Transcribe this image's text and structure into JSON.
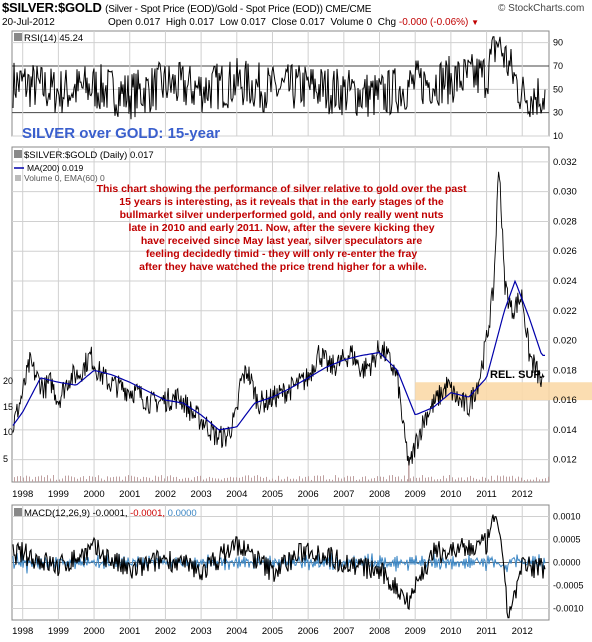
{
  "header": {
    "symbol": "$SILVER:$GOLD",
    "description": "(Silver - Spot Price (EOD)/Gold - Spot Price (EOD)) CME/CME",
    "date": "20-Jul-2012",
    "open_label": "Open",
    "open": "0.017",
    "high_label": "High",
    "high": "0.017",
    "low_label": "Low",
    "low": "0.017",
    "close_label": "Close",
    "close": "0.017",
    "volume_label": "Volume",
    "volume": "0",
    "chg_label": "Chg",
    "chg": "-0.000 (-0.06%)",
    "brand": "© StockCharts.com"
  },
  "colors": {
    "price": "#000000",
    "price_highlight": "#cc0033",
    "ma": "#0000aa",
    "annotation": "#c00000",
    "title": "#3a5fcd",
    "support_band": "#fbd9a8",
    "macd_signal": "#cc0000",
    "macd_hist": "#3b86c4",
    "grid": "#d0d0d0"
  },
  "chart_data": [
    {
      "type": "line",
      "panel": "rsi",
      "legend": "RSI(14) 45.24",
      "ylim": [
        10,
        100
      ],
      "yticks": [
        10,
        30,
        50,
        70,
        90
      ],
      "reference_lines": [
        30,
        70
      ],
      "series": [
        {
          "name": "RSI(14)",
          "x": [
            1998.0,
            1999.0,
            2000.0,
            2001.0,
            2002.0,
            2003.0,
            2004.0,
            2005.0,
            2006.0,
            2007.0,
            2008.0,
            2009.0,
            2010.0,
            2011.0,
            2011.3,
            2012.0,
            2012.55
          ],
          "values": [
            55,
            48,
            52,
            45,
            54,
            50,
            56,
            50,
            52,
            48,
            44,
            55,
            58,
            62,
            92,
            45,
            45.24
          ]
        }
      ]
    },
    {
      "type": "line",
      "panel": "price",
      "legend": [
        "$SILVER:$GOLD (Daily) 0.017",
        "MA(200) 0.019",
        "Volume 0, EMA(60) 0"
      ],
      "title": "SILVER over GOLD: 15-year",
      "annotation": "This chart showing the performance of silver relative to gold over the past 15 years is interesting, as it reveals that in the early stages of the bullmarket silver underperformed gold, and only really went nuts late in 2010 and early 2011. Now, after the severe kicking they have received since May last year, silver speculators are feeling decidedly timid - they will only re-enter the fray after they have watched the price trend higher for a while.",
      "support_label": "REL. SUP.",
      "support_band": [
        0.016,
        0.0172
      ],
      "yticks": [
        0.012,
        0.014,
        0.016,
        0.018,
        0.02,
        0.022,
        0.024,
        0.026,
        0.028,
        0.03,
        0.032
      ],
      "ytick_labels": [
        "0.012",
        "0.014",
        "0.016",
        "0.018",
        "0.020",
        "0.022",
        "0.024",
        "0.026",
        "0.028",
        "0.030",
        "0.032"
      ],
      "ylim": [
        0.0105,
        0.033
      ],
      "volume_ticks": [
        "5",
        "10",
        "15",
        "20"
      ],
      "xlim": [
        1997.7,
        2012.75
      ],
      "xticks": [
        1998,
        1999,
        2000,
        2001,
        2002,
        2003,
        2004,
        2005,
        2006,
        2007,
        2008,
        2009,
        2010,
        2011,
        2012
      ],
      "xtick_labels": [
        "1998",
        "1999",
        "2000",
        "2001",
        "2002",
        "2003",
        "2004",
        "2005",
        "2006",
        "2007",
        "2008",
        "2009",
        "2010",
        "2011",
        "2012"
      ],
      "series": [
        {
          "name": "$SILVER:$GOLD",
          "x": [
            1997.7,
            1998.0,
            1998.2,
            1998.4,
            1998.6,
            1998.8,
            1999.0,
            1999.3,
            1999.6,
            1999.9,
            2000.1,
            2000.4,
            2000.8,
            2001.2,
            2001.6,
            2002.0,
            2002.4,
            2002.8,
            2003.1,
            2003.4,
            2003.7,
            2004.0,
            2004.1,
            2004.3,
            2004.6,
            2004.9,
            2005.3,
            2005.7,
            2006.0,
            2006.3,
            2006.6,
            2006.9,
            2007.2,
            2007.5,
            2007.8,
            2008.0,
            2008.2,
            2008.5,
            2008.7,
            2008.85,
            2009.0,
            2009.3,
            2009.6,
            2009.9,
            2010.2,
            2010.5,
            2010.8,
            2011.0,
            2011.2,
            2011.35,
            2011.5,
            2011.7,
            2012.0,
            2012.2,
            2012.4,
            2012.55
          ],
          "values": [
            0.014,
            0.0165,
            0.0185,
            0.0175,
            0.0168,
            0.0172,
            0.016,
            0.0175,
            0.0178,
            0.019,
            0.018,
            0.0172,
            0.0168,
            0.0165,
            0.0158,
            0.016,
            0.0162,
            0.015,
            0.0145,
            0.0136,
            0.0135,
            0.015,
            0.0172,
            0.018,
            0.0158,
            0.016,
            0.0165,
            0.017,
            0.0175,
            0.0192,
            0.0182,
            0.0185,
            0.0192,
            0.018,
            0.0185,
            0.0195,
            0.019,
            0.0175,
            0.0135,
            0.0115,
            0.013,
            0.015,
            0.016,
            0.017,
            0.016,
            0.0155,
            0.0175,
            0.02,
            0.0235,
            0.0322,
            0.024,
            0.022,
            0.023,
            0.019,
            0.018,
            0.017
          ]
        },
        {
          "name": "MA(200)",
          "x": [
            1997.7,
            1998.0,
            1998.5,
            1999.0,
            1999.5,
            2000.0,
            2000.5,
            2001.0,
            2001.5,
            2002.0,
            2002.5,
            2003.0,
            2003.5,
            2004.0,
            2004.5,
            2005.0,
            2005.5,
            2006.0,
            2006.5,
            2007.0,
            2007.5,
            2008.0,
            2008.5,
            2009.0,
            2009.5,
            2010.0,
            2010.5,
            2011.0,
            2011.5,
            2011.8,
            2012.2,
            2012.55
          ],
          "values": [
            0.0142,
            0.0152,
            0.0175,
            0.0172,
            0.017,
            0.018,
            0.0177,
            0.0172,
            0.0166,
            0.016,
            0.0158,
            0.015,
            0.014,
            0.0142,
            0.0158,
            0.0162,
            0.0168,
            0.0175,
            0.0182,
            0.0187,
            0.019,
            0.0192,
            0.018,
            0.015,
            0.0155,
            0.0165,
            0.0162,
            0.0175,
            0.022,
            0.024,
            0.0215,
            0.019
          ]
        }
      ]
    },
    {
      "type": "line",
      "panel": "macd",
      "legend": [
        "MACD(12,26,9) -0.0001,",
        "-0.0001,",
        "0.0000"
      ],
      "ylim": [
        -0.00125,
        0.00125
      ],
      "yticks": [
        -0.001,
        -0.0005,
        0.0,
        0.0005,
        0.001
      ],
      "ytick_labels": [
        "-0.0010",
        "-0.0005",
        "0.0000",
        "0.0005",
        "0.0010"
      ],
      "xtick_labels": [
        "1998",
        "1999",
        "2000",
        "2001",
        "2002",
        "2003",
        "2004",
        "2005",
        "2006",
        "2007",
        "2008",
        "2009",
        "2010",
        "2011",
        "2012"
      ],
      "series": [
        {
          "name": "MACD",
          "x": [
            1998.0,
            1999.0,
            2000.0,
            2001.0,
            2002.0,
            2003.0,
            2004.0,
            2005.0,
            2006.0,
            2007.0,
            2008.0,
            2008.8,
            2009.5,
            2010.5,
            2011.0,
            2011.3,
            2011.6,
            2012.0,
            2012.55
          ],
          "values": [
            0.0002,
            -0.0001,
            0.0003,
            -0.0002,
            0.0001,
            -0.0002,
            0.0004,
            -0.0002,
            0.0003,
            0.0,
            -0.0002,
            -0.0008,
            0.0002,
            0.0003,
            0.0004,
            0.0011,
            -0.0012,
            -0.0001,
            -0.0001
          ]
        }
      ]
    }
  ]
}
